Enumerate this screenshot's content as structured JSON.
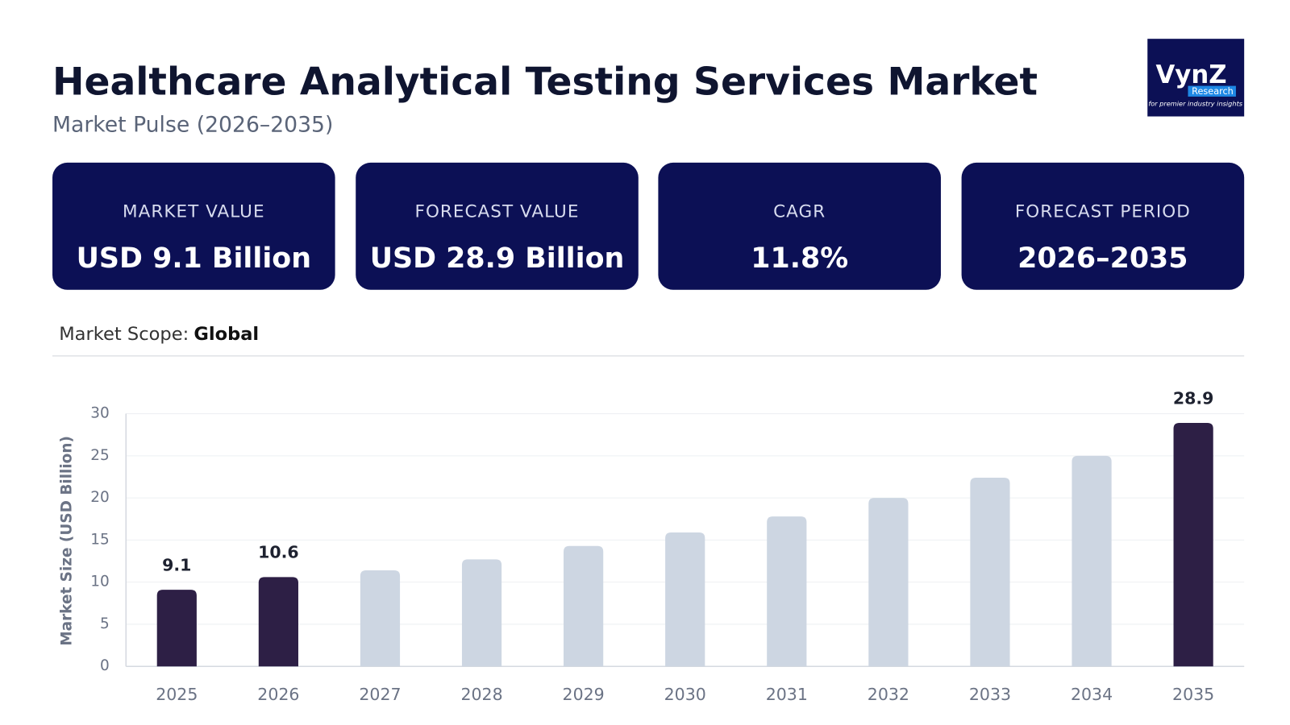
{
  "header": {
    "title": "Healthcare Analytical Testing Services Market",
    "subtitle": "Market Pulse (2026–2035)"
  },
  "logo": {
    "name": "VynZ",
    "sub": "Research",
    "tagline": "for premier industry insights"
  },
  "cards": [
    {
      "label": "MARKET VALUE",
      "value": "USD 9.1 Billion"
    },
    {
      "label": "FORECAST VALUE",
      "value": "USD 28.9 Billion"
    },
    {
      "label": "CAGR",
      "value": "11.8%"
    },
    {
      "label": "FORECAST PERIOD",
      "value": "2026–2035"
    }
  ],
  "scope": {
    "label": "Market Scope:",
    "value": "Global"
  },
  "chart_data": {
    "type": "bar",
    "y_label": "Market Size (USD Billion)",
    "categories": [
      "2025",
      "2026",
      "2027",
      "2028",
      "2029",
      "2030",
      "2031",
      "2032",
      "2033",
      "2034",
      "2035"
    ],
    "values": [
      9.1,
      10.6,
      11.4,
      12.7,
      14.3,
      15.9,
      17.8,
      20.0,
      22.4,
      25.0,
      28.9
    ],
    "value_labels": [
      "9.1",
      "10.6",
      null,
      null,
      null,
      null,
      null,
      null,
      null,
      null,
      "28.9"
    ],
    "colors": [
      "#2d1f45",
      "#2d1f45",
      "#cdd6e2",
      "#cdd6e2",
      "#cdd6e2",
      "#cdd6e2",
      "#cdd6e2",
      "#cdd6e2",
      "#cdd6e2",
      "#cdd6e2",
      "#2d1f45"
    ],
    "ylim": [
      0,
      30
    ],
    "yticks": [
      0,
      5,
      10,
      15,
      20,
      25,
      30
    ],
    "grid": true
  }
}
